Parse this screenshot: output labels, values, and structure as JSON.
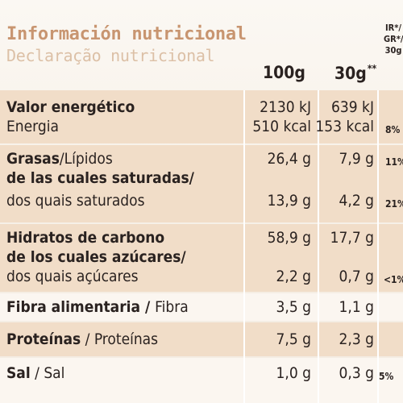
{
  "title": "Información nutricional",
  "subtitle": "Declaração nutricional",
  "columns": {
    "per_100g": "100g",
    "per_30g": "30g",
    "per_30g_mark": "**",
    "ri_line1": "IR*/",
    "ri_line2": "GR*/",
    "ri_line3": "30g"
  },
  "rows": {
    "energy": {
      "label_es": "Valor energético",
      "label_pt": "Energia",
      "kj_100": "2130 kJ",
      "kcal_100": "510 kcal",
      "kj_30": "639 kJ",
      "kcal_30": "153 kcal",
      "ri": "8%"
    },
    "fat": {
      "label_es": "Grasas",
      "label_pt": "/Lípidos",
      "v100": "26,4 g",
      "v30": "7,9 g",
      "ri": "11%"
    },
    "sat": {
      "label_es": "de las cuales saturadas/",
      "label_pt": "dos quais saturados",
      "v100": "13,9 g",
      "v30": "4,2 g",
      "ri": "21%"
    },
    "carbs": {
      "label_es": "Hidratos de carbono",
      "v100": "58,9 g",
      "v30": "17,7 g"
    },
    "sugars": {
      "label_es": "de los cuales azúcares/",
      "label_pt": "dos quais açúcares",
      "v100": "2,2 g",
      "v30": "0,7 g",
      "ri": "<1%"
    },
    "fibre": {
      "label_es": "Fibra alimentaria / ",
      "label_pt": "Fibra",
      "v100": "3,5 g",
      "v30": "1,1 g"
    },
    "protein": {
      "label_es": "Proteínas",
      "label_pt": " / Proteínas",
      "v100": "7,5 g",
      "v30": "2,3 g"
    },
    "salt": {
      "label_es": "Sal",
      "label_pt": " / Sal",
      "v100": "1,0 g",
      "v30": "0,3 g",
      "ri": "5%"
    }
  }
}
